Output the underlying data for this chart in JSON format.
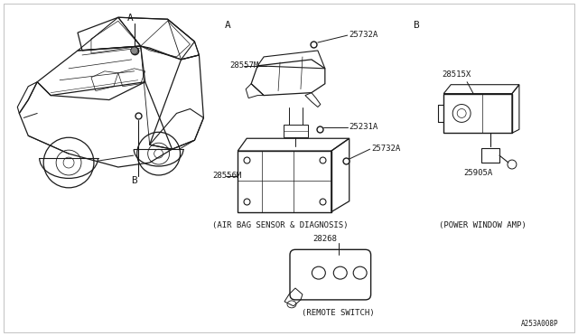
{
  "bg_color": "#ffffff",
  "line_color": "#1a1a1a",
  "text_color": "#1a1a1a",
  "part_number_ref": "A253A008P",
  "airbag_label": "(AIR BAG SENSOR & DIAGNOSIS)",
  "power_window_label": "(POWER WINDOW AMP)",
  "remote_switch_label": "(REMOTE SWITCH)"
}
